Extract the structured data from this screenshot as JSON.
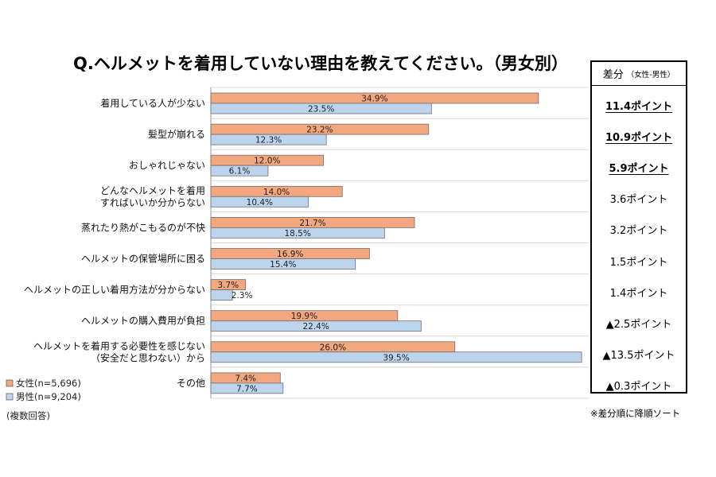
{
  "title": "Q.ヘルメットを着用していない理由を教えてください。（男女別）",
  "diff_header": {
    "main": "差分",
    "sub": "（女性-男性）"
  },
  "diffs": [
    {
      "text": "11.4ポイント",
      "underline": true
    },
    {
      "text": "10.9ポイント",
      "underline": true
    },
    {
      "text": "5.9ポイント",
      "underline": true
    },
    {
      "text": "3.6ポイント",
      "underline": false
    },
    {
      "text": "3.2ポイント",
      "underline": false
    },
    {
      "text": "1.5ポイント",
      "underline": false
    },
    {
      "text": "1.4ポイント",
      "underline": false
    },
    {
      "text": "▲2.5ポイント",
      "underline": false
    },
    {
      "text": "▲13.5ポイント",
      "underline": false
    },
    {
      "text": "▲0.3ポイント",
      "underline": false
    }
  ],
  "sort_note": "※差分順に降順ソート",
  "legend": {
    "female": "女性(n=5,696)",
    "male": "男性(n=9,204)",
    "note": "(複数回答)"
  },
  "chart_data": {
    "type": "bar",
    "orientation": "horizontal",
    "categories": [
      [
        "着用している人が少ない"
      ],
      [
        "髪型が崩れる"
      ],
      [
        "おしゃれじゃない"
      ],
      [
        "どんなヘルメットを着用",
        "すればいいか分からない"
      ],
      [
        "蒸れたり熱がこもるのが不快"
      ],
      [
        "ヘルメットの保管場所に困る"
      ],
      [
        "ヘルメットの正しい着用方法が分からない"
      ],
      [
        "ヘルメットの購入費用が負担"
      ],
      [
        "ヘルメットを着用する必要性を感じない",
        "（安全だと思わない）から"
      ],
      [
        "その他"
      ]
    ],
    "series": [
      {
        "name": "女性(n=5,696)",
        "color": "#f2a77e",
        "values": [
          34.9,
          23.2,
          12.0,
          14.0,
          21.7,
          16.9,
          3.7,
          19.9,
          26.0,
          7.4
        ]
      },
      {
        "name": "男性(n=9,204)",
        "color": "#bdd4ee",
        "values": [
          23.5,
          12.3,
          6.1,
          10.4,
          18.5,
          15.4,
          2.3,
          22.4,
          39.5,
          7.7
        ]
      }
    ],
    "value_suffix": "%",
    "xlim": [
      0,
      40
    ],
    "grid": "horizontal-separators",
    "legend_position": "bottom-left"
  }
}
